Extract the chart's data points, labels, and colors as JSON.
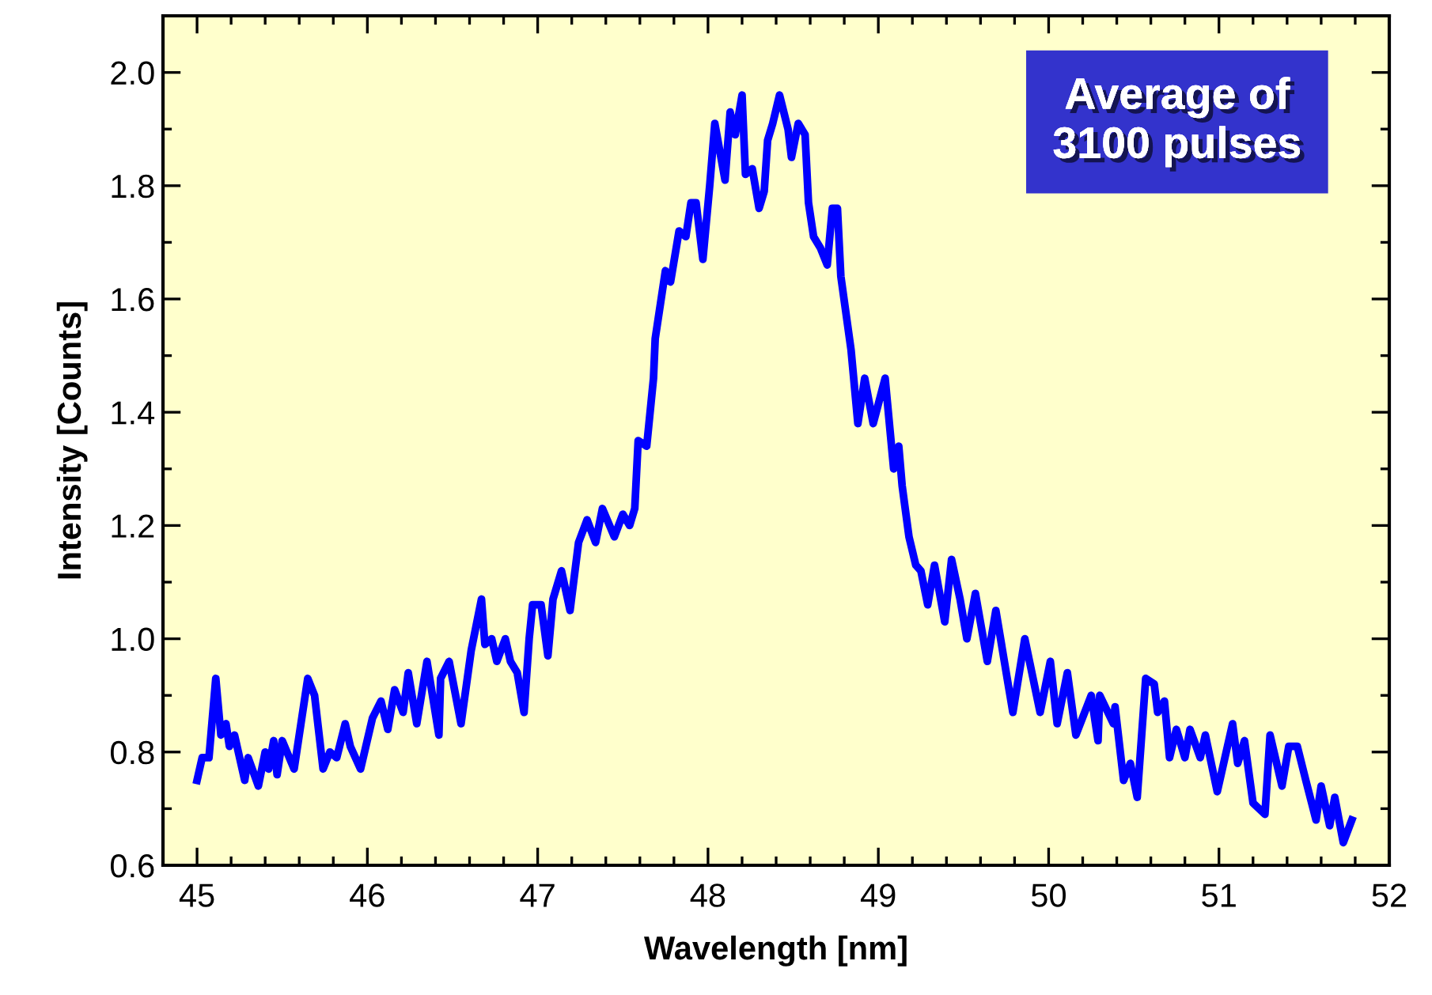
{
  "chart_data": {
    "type": "line",
    "xlabel": "Wavelength [nm]",
    "ylabel": "Intensity [Counts]",
    "annotations": [
      "Average of\n3100 pulses"
    ],
    "xlim": [
      44.8,
      52.0
    ],
    "xticks": [
      45,
      46,
      47,
      48,
      49,
      50,
      51,
      52
    ],
    "ylim": [
      0.6,
      2.1
    ],
    "yticks": [
      {
        "value": 0.6,
        "label": "0.6"
      },
      {
        "value": 0.8,
        "label": "0.8"
      },
      {
        "value": 1.0,
        "label": "1.0"
      },
      {
        "value": 1.2,
        "label": "1.2"
      },
      {
        "value": 1.4,
        "label": "1.4"
      },
      {
        "value": 1.6,
        "label": "1.6"
      },
      {
        "value": 1.8,
        "label": "1.8"
      },
      {
        "value": 2.0,
        "label": "2.0"
      }
    ],
    "grid": false,
    "legend": false,
    "marker": "none",
    "line_style": "solid",
    "series": [
      {
        "color": "#0000ff",
        "x": [
          45.0,
          45.03,
          45.07,
          45.11,
          45.14,
          45.17,
          45.19,
          45.22,
          45.28,
          45.3,
          45.36,
          45.4,
          45.42,
          45.45,
          45.47,
          45.5,
          45.57,
          45.61,
          45.65,
          45.69,
          45.74,
          45.78,
          45.82,
          45.87,
          45.9,
          45.96,
          46.03,
          46.08,
          46.12,
          46.16,
          46.21,
          46.24,
          46.29,
          46.35,
          46.42,
          46.43,
          46.48,
          46.55,
          46.61,
          46.67,
          46.69,
          46.73,
          46.76,
          46.81,
          46.84,
          46.88,
          46.92,
          46.95,
          46.97,
          47.02,
          47.06,
          47.09,
          47.14,
          47.19,
          47.24,
          47.29,
          47.34,
          47.38,
          47.45,
          47.5,
          47.54,
          47.57,
          47.59,
          47.64,
          47.68,
          47.69,
          47.75,
          47.78,
          47.83,
          47.87,
          47.9,
          47.93,
          47.97,
          48.01,
          48.04,
          48.1,
          48.13,
          48.16,
          48.2,
          48.22,
          48.26,
          48.3,
          48.33,
          48.35,
          48.38,
          48.42,
          48.47,
          48.49,
          48.53,
          48.57,
          48.59,
          48.62,
          48.66,
          48.7,
          48.73,
          48.76,
          48.78,
          48.84,
          48.88,
          48.92,
          48.97,
          49.04,
          49.09,
          49.12,
          49.14,
          49.18,
          49.22,
          49.25,
          49.29,
          49.33,
          49.39,
          49.43,
          49.48,
          49.52,
          49.57,
          49.64,
          49.69,
          49.79,
          49.86,
          49.95,
          50.01,
          50.05,
          50.11,
          50.16,
          50.25,
          50.29,
          50.3,
          50.38,
          50.39,
          50.44,
          50.48,
          50.52,
          50.57,
          50.62,
          50.64,
          50.68,
          50.71,
          50.75,
          50.8,
          50.83,
          50.89,
          50.92,
          50.99,
          51.08,
          51.11,
          51.15,
          51.2,
          51.27,
          51.3,
          51.37,
          51.41,
          51.46,
          51.51,
          51.57,
          51.6,
          51.65,
          51.68,
          51.73,
          51.78
        ],
        "values": [
          0.75,
          0.79,
          0.79,
          0.93,
          0.83,
          0.85,
          0.81,
          0.83,
          0.75,
          0.79,
          0.74,
          0.8,
          0.77,
          0.82,
          0.76,
          0.82,
          0.77,
          0.85,
          0.93,
          0.9,
          0.77,
          0.8,
          0.79,
          0.85,
          0.81,
          0.77,
          0.86,
          0.89,
          0.84,
          0.91,
          0.87,
          0.94,
          0.85,
          0.96,
          0.83,
          0.93,
          0.96,
          0.85,
          0.98,
          1.07,
          0.99,
          1.0,
          0.96,
          1.0,
          0.96,
          0.94,
          0.87,
          1.0,
          1.06,
          1.06,
          0.97,
          1.07,
          1.12,
          1.05,
          1.17,
          1.21,
          1.17,
          1.23,
          1.18,
          1.22,
          1.2,
          1.23,
          1.35,
          1.34,
          1.46,
          1.53,
          1.65,
          1.63,
          1.72,
          1.71,
          1.77,
          1.77,
          1.67,
          1.8,
          1.91,
          1.81,
          1.93,
          1.89,
          1.96,
          1.82,
          1.83,
          1.76,
          1.79,
          1.88,
          1.91,
          1.96,
          1.9,
          1.85,
          1.91,
          1.89,
          1.77,
          1.71,
          1.69,
          1.66,
          1.76,
          1.76,
          1.64,
          1.51,
          1.38,
          1.46,
          1.38,
          1.46,
          1.3,
          1.34,
          1.27,
          1.18,
          1.13,
          1.12,
          1.06,
          1.13,
          1.03,
          1.14,
          1.07,
          1.0,
          1.08,
          0.96,
          1.05,
          0.87,
          1.0,
          0.87,
          0.96,
          0.85,
          0.94,
          0.83,
          0.9,
          0.82,
          0.9,
          0.85,
          0.88,
          0.75,
          0.78,
          0.72,
          0.93,
          0.92,
          0.87,
          0.89,
          0.79,
          0.84,
          0.79,
          0.84,
          0.79,
          0.83,
          0.73,
          0.85,
          0.78,
          0.82,
          0.71,
          0.69,
          0.83,
          0.74,
          0.81,
          0.81,
          0.75,
          0.68,
          0.74,
          0.67,
          0.72,
          0.64,
          0.68
        ]
      }
    ]
  }
}
